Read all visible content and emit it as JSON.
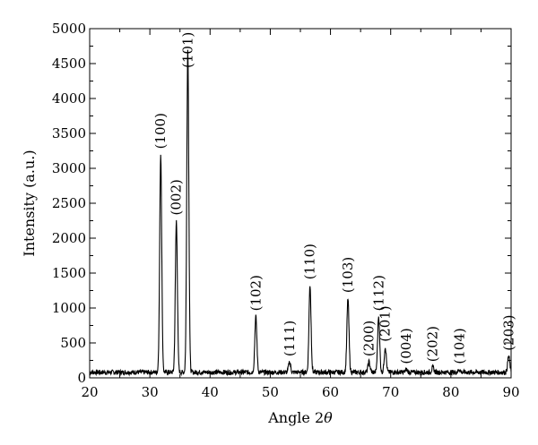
{
  "chart_data": {
    "type": "line",
    "title": "",
    "xlabel": "Angle 2",
    "xlabel_symbol": "θ",
    "ylabel": "Intensity (a.u.)",
    "xlim": [
      20,
      90
    ],
    "ylim": [
      0,
      5000
    ],
    "x_ticks": [
      20,
      30,
      40,
      50,
      60,
      70,
      80,
      90
    ],
    "y_ticks": [
      0,
      500,
      1000,
      1500,
      2000,
      2500,
      3000,
      3500,
      4000,
      4500,
      5000
    ],
    "grid": false,
    "baseline": 80,
    "peaks": [
      {
        "label": "(100)",
        "x": 31.8,
        "y": 3200
      },
      {
        "label": "(002)",
        "x": 34.4,
        "y": 2250
      },
      {
        "label": "(101)",
        "x": 36.3,
        "y": 4700
      },
      {
        "label": "(102)",
        "x": 47.6,
        "y": 880
      },
      {
        "label": "(111)",
        "x": 53.2,
        "y": 230
      },
      {
        "label": "(110)",
        "x": 56.6,
        "y": 1330
      },
      {
        "label": "(103)",
        "x": 62.9,
        "y": 1140
      },
      {
        "label": "(200)",
        "x": 66.4,
        "y": 230
      },
      {
        "label": "(112)",
        "x": 68.0,
        "y": 880
      },
      {
        "label": "(201)",
        "x": 69.1,
        "y": 440
      },
      {
        "label": "(004)",
        "x": 72.6,
        "y": 120
      },
      {
        "label": "(202)",
        "x": 77.0,
        "y": 150
      },
      {
        "label": "(104)",
        "x": 81.4,
        "y": 120
      },
      {
        "label": "(203)",
        "x": 89.6,
        "y": 310
      }
    ]
  }
}
